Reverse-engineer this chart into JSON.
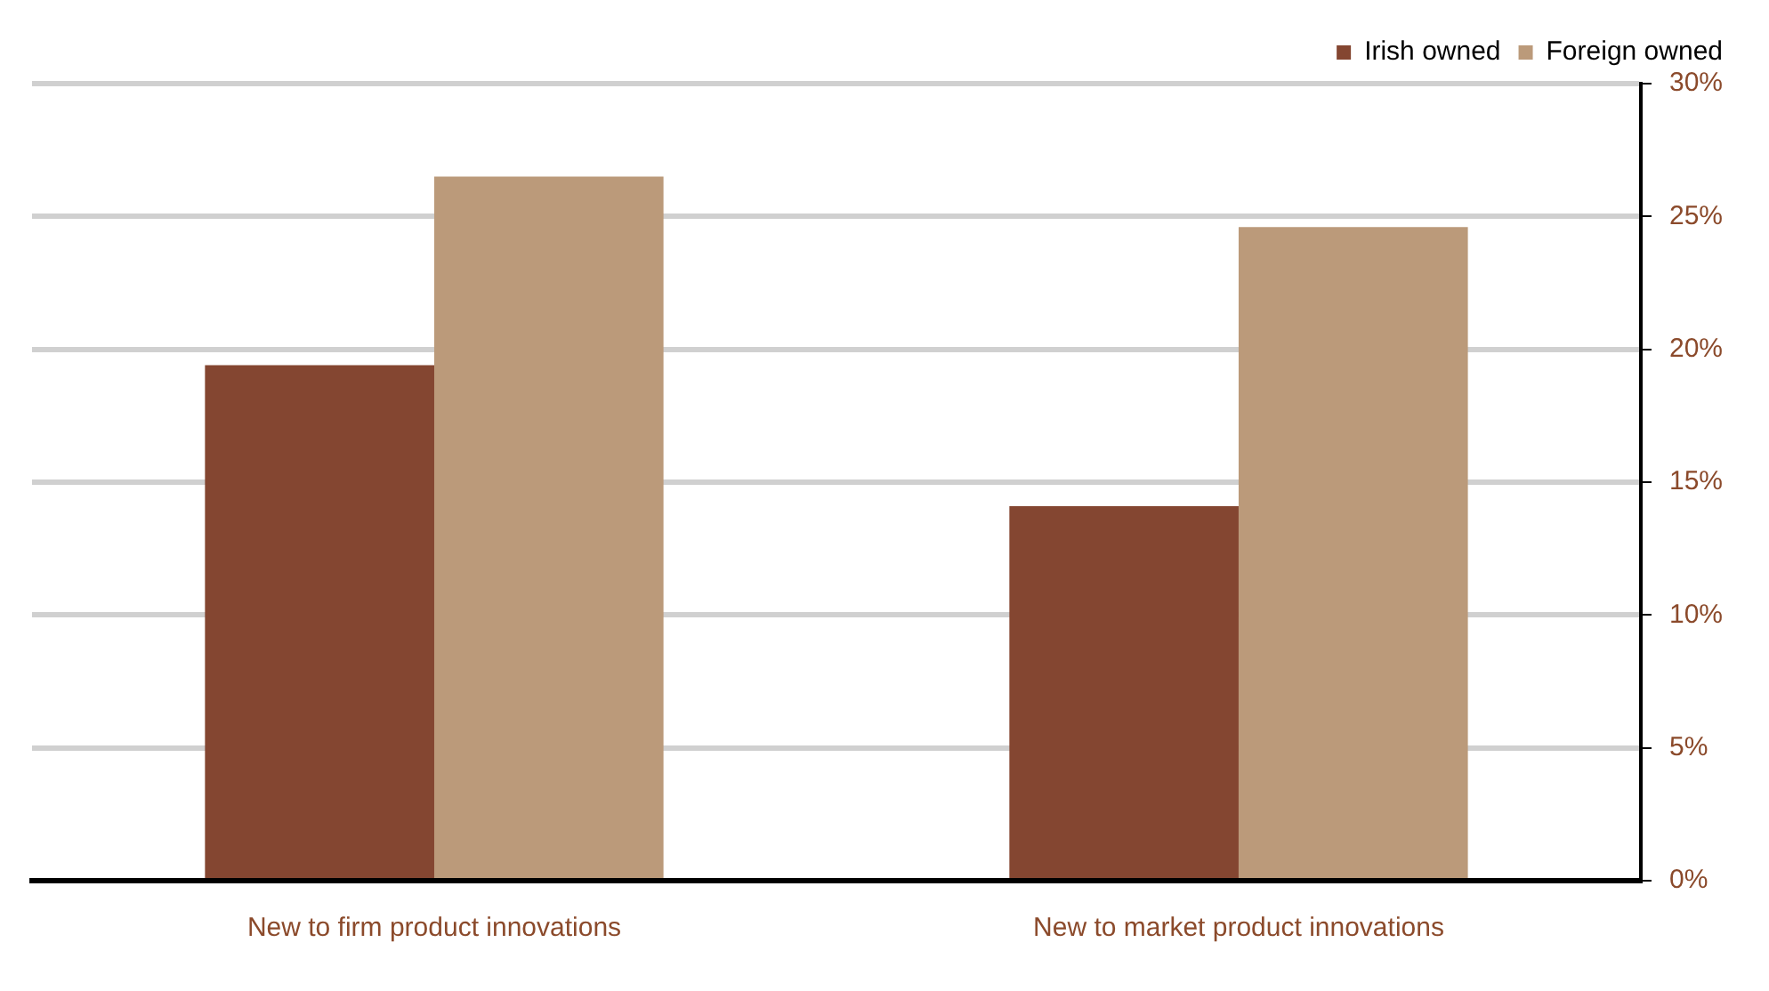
{
  "chart_data": {
    "type": "bar",
    "categories": [
      "New to firm product innovations",
      "New to market product innovations"
    ],
    "series": [
      {
        "name": "Irish owned",
        "color": "#844631",
        "values": [
          19.4,
          14.1
        ]
      },
      {
        "name": "Foreign owned",
        "color": "#bb9a7a",
        "values": [
          26.5,
          24.6
        ]
      }
    ],
    "ylim": [
      0,
      30
    ],
    "yticks": [
      {
        "value": 0,
        "label": "0%"
      },
      {
        "value": 5,
        "label": "5%"
      },
      {
        "value": 10,
        "label": "10%"
      },
      {
        "value": 15,
        "label": "15%"
      },
      {
        "value": 20,
        "label": "20%"
      },
      {
        "value": 25,
        "label": "25%"
      },
      {
        "value": 30,
        "label": "30%"
      }
    ],
    "grid": "y",
    "legend": "top right"
  }
}
